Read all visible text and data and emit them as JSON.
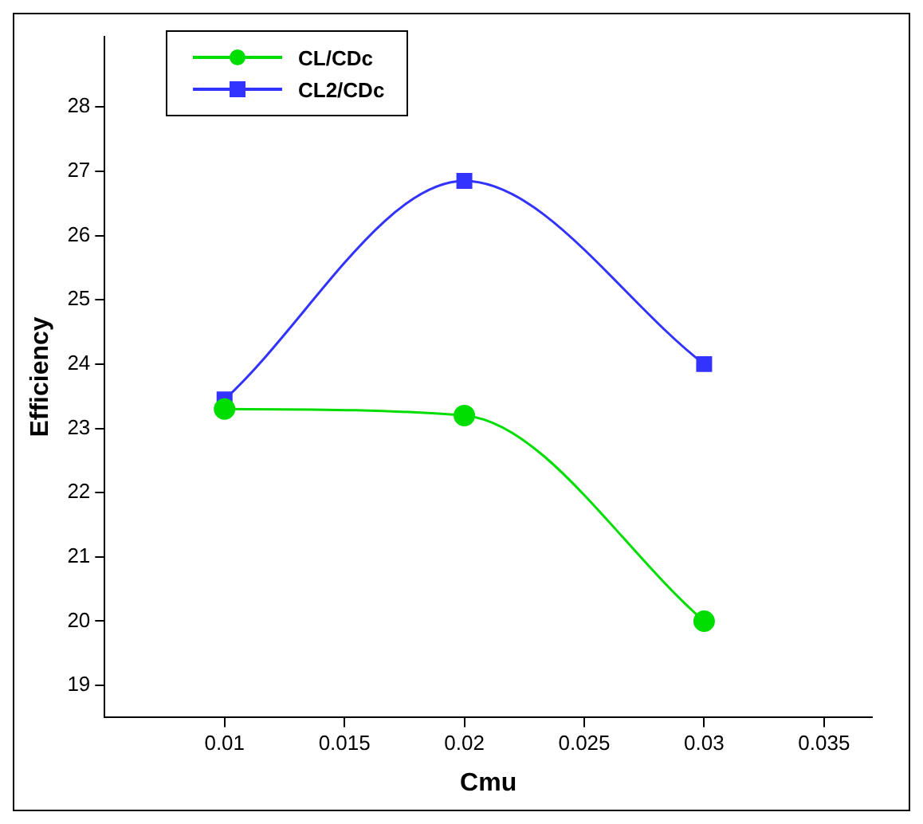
{
  "chart_data": {
    "type": "line",
    "xlabel": "Cmu",
    "ylabel": "Efficiency",
    "x": [
      0.01,
      0.02,
      0.03
    ],
    "series": [
      {
        "name": "CL/CDc",
        "color": "#00dd00",
        "marker": "circle",
        "values": [
          23.3,
          23.2,
          20.0
        ]
      },
      {
        "name": "CL2/CDc",
        "color": "#3333ff",
        "marker": "square",
        "values": [
          23.45,
          26.85,
          24.0
        ]
      }
    ],
    "xlim": [
      0.005,
      0.037
    ],
    "xticks": [
      0.01,
      0.015,
      0.02,
      0.025,
      0.03,
      0.035
    ],
    "ylim": [
      18.5,
      29.1
    ],
    "yticks": [
      19,
      20,
      21,
      22,
      23,
      24,
      25,
      26,
      27,
      28
    ],
    "grid": false,
    "legend": "top left",
    "line_style": "solid"
  }
}
